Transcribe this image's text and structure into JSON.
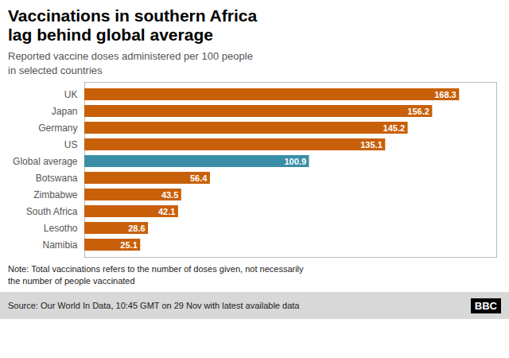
{
  "chart_data": {
    "type": "bar",
    "orientation": "horizontal",
    "title": "Vaccinations in southern Africa\nlag behind global average",
    "subtitle": "Reported vaccine doses administered per 100 people\nin selected countries",
    "annotations": [
      "Note: Total vaccinations refers to the number of doses given, not necessarily\nthe number of people vaccinated",
      "Source: Our World In Data, 10:45 GMT on 29 Nov with latest available data",
      "BBC"
    ],
    "categories": [
      "UK",
      "Japan",
      "Germany",
      "US",
      "Global average",
      "Botswana",
      "Zimbabwe",
      "South Africa",
      "Lesotho",
      "Namibia"
    ],
    "values": [
      168.3,
      156.2,
      145.2,
      135.1,
      100.9,
      56.4,
      43.5,
      42.1,
      28.6,
      25.1
    ],
    "colors": [
      "#c8600a",
      "#c8600a",
      "#c8600a",
      "#c8600a",
      "#3a8fa6",
      "#c8600a",
      "#c8600a",
      "#c8600a",
      "#c8600a",
      "#c8600a"
    ],
    "xlim": [
      0,
      185
    ],
    "data_labels": true,
    "tick_labels": "y",
    "grid": false
  }
}
